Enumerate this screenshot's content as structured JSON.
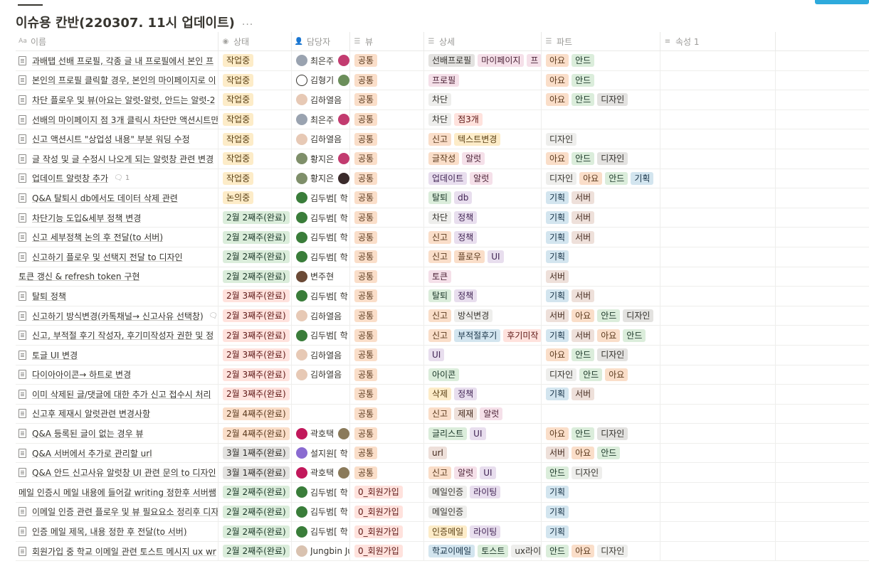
{
  "page": {
    "title": "이슈용 칸반(220307. 11시 업데이트)",
    "more_icon": "..."
  },
  "headers": [
    {
      "label": "이름",
      "icon": "Aa"
    },
    {
      "label": "상태",
      "icon": "status-icon"
    },
    {
      "label": "담당자",
      "icon": "person-icon"
    },
    {
      "label": "뷰",
      "icon": "list-icon"
    },
    {
      "label": "상세",
      "icon": "list-icon"
    },
    {
      "label": "파트",
      "icon": "list-icon"
    },
    {
      "label": "속성 1",
      "icon": "text-icon"
    }
  ],
  "add_column_icon": "+",
  "header_more_icon": "...",
  "colors": {
    "orange": {
      "bg": "#fadec9",
      "fg": "#5b3a1e"
    },
    "yellow": {
      "bg": "#fdecc8",
      "fg": "#5b4116"
    },
    "green": {
      "bg": "#dbeddb",
      "fg": "#1c3829"
    },
    "red": {
      "bg": "#ffe2dd",
      "fg": "#5d1715"
    },
    "pink": {
      "bg": "#f5e0e9",
      "fg": "#4c2337"
    },
    "purple": {
      "bg": "#e8deee",
      "fg": "#412454"
    },
    "blue": {
      "bg": "#d3e5ef",
      "fg": "#183347"
    },
    "gray": {
      "bg": "#e3e2e0",
      "fg": "#32302c"
    },
    "brown": {
      "bg": "#eee0da",
      "fg": "#442a1e"
    },
    "default": {
      "bg": "#eeeeec",
      "fg": "#37352f"
    }
  },
  "rows": [
    {
      "name": "과배탭 선배 프로필, 각종 글 내 프로필에서 본인 프",
      "status": {
        "label": "작업중",
        "color": "yellow"
      },
      "assignee": {
        "name": "최은주",
        "avatar": "#9aa3b0",
        "second": "#c23b6f"
      },
      "view": {
        "label": "공통",
        "color": "orange"
      },
      "detail": [
        {
          "label": "선배프로필",
          "color": "gray"
        },
        {
          "label": "마이페이지",
          "color": "pink"
        },
        {
          "label": "프",
          "color": "pink"
        }
      ],
      "part": [
        {
          "label": "아요",
          "color": "orange"
        },
        {
          "label": "안드",
          "color": "green"
        }
      ]
    },
    {
      "name": "본인의 프로필 클릭할 경우, 본인의 마이페이지로 이",
      "status": {
        "label": "작업중",
        "color": "yellow"
      },
      "assignee": {
        "name": "김형기",
        "avatar": "#ffffff",
        "second": "#6b8e5a",
        "outline": true
      },
      "view": {
        "label": "공통",
        "color": "orange"
      },
      "detail": [
        {
          "label": "프로필",
          "color": "pink"
        }
      ],
      "part": [
        {
          "label": "아요",
          "color": "orange"
        },
        {
          "label": "안드",
          "color": "green"
        }
      ]
    },
    {
      "name": "차단 플로우 및 뷰(아요는 알럿-알럿, 안드는 알럿-2",
      "status": {
        "label": "작업중",
        "color": "yellow"
      },
      "assignee": {
        "name": "김하열음",
        "avatar": "#e7c9b5"
      },
      "view": {
        "label": "공통",
        "color": "orange"
      },
      "detail": [
        {
          "label": "차단",
          "color": "default"
        }
      ],
      "part": [
        {
          "label": "아요",
          "color": "orange"
        },
        {
          "label": "안드",
          "color": "green"
        },
        {
          "label": "디자인",
          "color": "gray"
        }
      ]
    },
    {
      "name": "선배의 마이페이지 점 3개 클릭시 차단만 액션시트만",
      "status": {
        "label": "작업중",
        "color": "yellow"
      },
      "assignee": {
        "name": "최은주",
        "avatar": "#9aa3b0",
        "second": "#c23b6f"
      },
      "view": {
        "label": "공통",
        "color": "orange"
      },
      "detail": [
        {
          "label": "차단",
          "color": "default"
        },
        {
          "label": "점3개",
          "color": "red"
        }
      ],
      "part": []
    },
    {
      "name": "신고 액션시트 \"상업성 내용\" 부분 워딩 수정",
      "status": {
        "label": "작업중",
        "color": "yellow"
      },
      "assignee": {
        "name": "김하열음",
        "avatar": "#e7c9b5"
      },
      "view": {
        "label": "공통",
        "color": "orange"
      },
      "detail": [
        {
          "label": "신고",
          "color": "orange"
        },
        {
          "label": "텍스트변경",
          "color": "yellow"
        }
      ],
      "part": [
        {
          "label": "디자인",
          "color": "default"
        }
      ]
    },
    {
      "name": "글 작성 및 글 수정시 나오게 되는 알럿창 관련 변경",
      "status": {
        "label": "작업중",
        "color": "yellow"
      },
      "assignee": {
        "name": "황지은",
        "avatar": "#7f8f6a",
        "second": "#c23b6f"
      },
      "view": {
        "label": "공통",
        "color": "orange"
      },
      "detail": [
        {
          "label": "글작성",
          "color": "orange"
        },
        {
          "label": "알럿",
          "color": "pink"
        }
      ],
      "part": [
        {
          "label": "아요",
          "color": "orange"
        },
        {
          "label": "안드",
          "color": "green"
        },
        {
          "label": "디자인",
          "color": "gray"
        }
      ]
    },
    {
      "name": "업데이트 알럿창 추가",
      "comment": "1",
      "status": {
        "label": "작업중",
        "color": "yellow"
      },
      "assignee": {
        "name": "황지은",
        "avatar": "#7f8f6a",
        "second": "#3a2a2a"
      },
      "view": {
        "label": "공통",
        "color": "orange"
      },
      "detail": [
        {
          "label": "업데이트",
          "color": "purple"
        },
        {
          "label": "알럿",
          "color": "pink"
        }
      ],
      "part": [
        {
          "label": "디자인",
          "color": "default"
        },
        {
          "label": "아요",
          "color": "orange"
        },
        {
          "label": "안드",
          "color": "green"
        },
        {
          "label": "기획",
          "color": "blue"
        }
      ]
    },
    {
      "name": "Q&A 탈퇴시 db에서도 데이터 삭제 관련",
      "status": {
        "label": "논의중",
        "color": "yellow"
      },
      "assignee": {
        "name": "김두범[ 학",
        "avatar": "#3a7d3a"
      },
      "view": {
        "label": "공통",
        "color": "orange"
      },
      "detail": [
        {
          "label": "탈퇴",
          "color": "green"
        },
        {
          "label": "db",
          "color": "purple"
        }
      ],
      "part": [
        {
          "label": "기획",
          "color": "blue"
        },
        {
          "label": "서버",
          "color": "brown"
        }
      ]
    },
    {
      "name": "차단기능 도입&세부 정책 변경",
      "status": {
        "label": "2월 2째주(완료)",
        "color": "green"
      },
      "assignee": {
        "name": "김두범[ 학",
        "avatar": "#3a7d3a"
      },
      "view": {
        "label": "공통",
        "color": "orange"
      },
      "detail": [
        {
          "label": "차단",
          "color": "default"
        },
        {
          "label": "정책",
          "color": "purple"
        }
      ],
      "part": [
        {
          "label": "기획",
          "color": "blue"
        },
        {
          "label": "서버",
          "color": "brown"
        }
      ]
    },
    {
      "name": "신고 세부정책 논의 후 전달(to 서버)",
      "status": {
        "label": "2월 2째주(완료)",
        "color": "green"
      },
      "assignee": {
        "name": "김두범[ 학",
        "avatar": "#3a7d3a"
      },
      "view": {
        "label": "공통",
        "color": "orange"
      },
      "detail": [
        {
          "label": "신고",
          "color": "orange"
        },
        {
          "label": "정책",
          "color": "purple"
        }
      ],
      "part": [
        {
          "label": "기획",
          "color": "blue"
        },
        {
          "label": "서버",
          "color": "brown"
        }
      ]
    },
    {
      "name": "신고하기 플로우 및 선택지 전달 to 디자인",
      "status": {
        "label": "2월 2째주(완료)",
        "color": "green"
      },
      "assignee": {
        "name": "김두범[ 학",
        "avatar": "#3a7d3a"
      },
      "view": {
        "label": "공통",
        "color": "orange"
      },
      "detail": [
        {
          "label": "신고",
          "color": "orange"
        },
        {
          "label": "플로우",
          "color": "orange"
        },
        {
          "label": "UI",
          "color": "purple"
        }
      ],
      "part": [
        {
          "label": "기획",
          "color": "blue"
        }
      ]
    },
    {
      "name": "토큰 갱신 & refresh token 구현",
      "no_icon": true,
      "status": {
        "label": "2월 2째주(완료)",
        "color": "green"
      },
      "assignee": {
        "name": "변주현",
        "avatar": "#6b4a36"
      },
      "view": {
        "label": "공통",
        "color": "orange"
      },
      "detail": [
        {
          "label": "토큰",
          "color": "pink"
        }
      ],
      "part": [
        {
          "label": "서버",
          "color": "brown"
        }
      ]
    },
    {
      "name": "탈퇴 정책",
      "status": {
        "label": "2월 3째주(완료)",
        "color": "red"
      },
      "assignee": {
        "name": "김두범[ 학",
        "avatar": "#3a7d3a"
      },
      "view": {
        "label": "공통",
        "color": "orange"
      },
      "detail": [
        {
          "label": "탈퇴",
          "color": "green"
        },
        {
          "label": "정책",
          "color": "purple"
        }
      ],
      "part": [
        {
          "label": "기획",
          "color": "blue"
        },
        {
          "label": "서버",
          "color": "brown"
        }
      ]
    },
    {
      "name": "신고하기 방식변경(카톡채널→ 신고사유 선택창)",
      "comment": " ",
      "status": {
        "label": "2월 3째주(완료)",
        "color": "red"
      },
      "assignee": {
        "name": "김하열음",
        "avatar": "#e7c9b5"
      },
      "view": {
        "label": "공통",
        "color": "orange"
      },
      "detail": [
        {
          "label": "신고",
          "color": "orange"
        },
        {
          "label": "방식변경",
          "color": "default"
        }
      ],
      "part": [
        {
          "label": "서버",
          "color": "brown"
        },
        {
          "label": "아요",
          "color": "orange"
        },
        {
          "label": "안드",
          "color": "green"
        },
        {
          "label": "디자인",
          "color": "gray"
        }
      ]
    },
    {
      "name": "신고, 부적절 후기 작성자, 후기미작성자 권한 및 정",
      "status": {
        "label": "2월 3째주(완료)",
        "color": "red"
      },
      "assignee": {
        "name": "김두범[ 학",
        "avatar": "#3a7d3a"
      },
      "view": {
        "label": "공통",
        "color": "orange"
      },
      "detail": [
        {
          "label": "신고",
          "color": "orange"
        },
        {
          "label": "부적절후기",
          "color": "blue"
        },
        {
          "label": "후기미작",
          "color": "red"
        }
      ],
      "part": [
        {
          "label": "기획",
          "color": "blue"
        },
        {
          "label": "서버",
          "color": "brown"
        },
        {
          "label": "아요",
          "color": "orange"
        },
        {
          "label": "안드",
          "color": "green"
        }
      ]
    },
    {
      "name": "토글 UI 변경",
      "status": {
        "label": "2월 3째주(완료)",
        "color": "red"
      },
      "assignee": {
        "name": "김하열음",
        "avatar": "#e7c9b5"
      },
      "view": {
        "label": "공통",
        "color": "orange"
      },
      "detail": [
        {
          "label": "UI",
          "color": "purple"
        }
      ],
      "part": [
        {
          "label": "아요",
          "color": "orange"
        },
        {
          "label": "안드",
          "color": "green"
        },
        {
          "label": "디자인",
          "color": "gray"
        }
      ]
    },
    {
      "name": "다이아아이콘→ 하트로 변경",
      "status": {
        "label": "2월 3째주(완료)",
        "color": "red"
      },
      "assignee": {
        "name": "김하열음",
        "avatar": "#e7c9b5"
      },
      "view": {
        "label": "공통",
        "color": "orange"
      },
      "detail": [
        {
          "label": "아이콘",
          "color": "green"
        }
      ],
      "part": [
        {
          "label": "디자인",
          "color": "default"
        },
        {
          "label": "안드",
          "color": "green"
        },
        {
          "label": "아요",
          "color": "orange"
        }
      ]
    },
    {
      "name": "이미 삭제된 글/댓글에 대한 추가 신고 접수시 처리",
      "status": {
        "label": "2월 3째주(완료)",
        "color": "red"
      },
      "assignee": {
        "name": "",
        "avatar": ""
      },
      "view": {
        "label": "공통",
        "color": "orange"
      },
      "detail": [
        {
          "label": "삭제",
          "color": "yellow"
        },
        {
          "label": "정책",
          "color": "purple"
        }
      ],
      "part": [
        {
          "label": "기획",
          "color": "blue"
        },
        {
          "label": "서버",
          "color": "brown"
        }
      ]
    },
    {
      "name": "신고후 제재시 알럿관련 변경사항",
      "status": {
        "label": "2월 4째주(완료)",
        "color": "orange"
      },
      "assignee": {
        "name": "",
        "avatar": ""
      },
      "view": {
        "label": "공통",
        "color": "orange"
      },
      "detail": [
        {
          "label": "신고",
          "color": "orange"
        },
        {
          "label": "제재",
          "color": "brown"
        },
        {
          "label": "알럿",
          "color": "pink"
        }
      ],
      "part": []
    },
    {
      "name": "Q&A 등록된 글이 없는 경우 뷰",
      "status": {
        "label": "2월 4째주(완료)",
        "color": "orange"
      },
      "assignee": {
        "name": "곽호택",
        "avatar": "#c2185b",
        "second": "#8a7a5a"
      },
      "view": {
        "label": "공통",
        "color": "orange"
      },
      "detail": [
        {
          "label": "글리스트",
          "color": "green"
        },
        {
          "label": "UI",
          "color": "purple"
        }
      ],
      "part": [
        {
          "label": "아요",
          "color": "orange"
        },
        {
          "label": "안드",
          "color": "green"
        },
        {
          "label": "디자인",
          "color": "gray"
        }
      ]
    },
    {
      "name": "Q&A 서버에서 추가로 관리할 url",
      "status": {
        "label": "3월 1째주(완료)",
        "color": "gray"
      },
      "assignee": {
        "name": "설지원[ 학",
        "avatar": "#8a6bd1"
      },
      "view": {
        "label": "공통",
        "color": "orange"
      },
      "detail": [
        {
          "label": "url",
          "color": "brown"
        }
      ],
      "part": [
        {
          "label": "서버",
          "color": "brown"
        },
        {
          "label": "아요",
          "color": "orange"
        },
        {
          "label": "안드",
          "color": "green"
        }
      ]
    },
    {
      "name": "Q&A 안드 신고사유 알럿창 UI 관련 문의 to 디자인",
      "status": {
        "label": "3월 1째주(완료)",
        "color": "gray"
      },
      "assignee": {
        "name": "곽호택",
        "avatar": "#c2185b",
        "second": "#8a7a5a"
      },
      "view": {
        "label": "공통",
        "color": "orange"
      },
      "detail": [
        {
          "label": "신고",
          "color": "orange"
        },
        {
          "label": "알럿",
          "color": "pink"
        },
        {
          "label": "UI",
          "color": "purple"
        }
      ],
      "part": [
        {
          "label": "안드",
          "color": "green"
        },
        {
          "label": "디자인",
          "color": "default"
        }
      ]
    },
    {
      "name": "메일 인증시 메일 내용에 들어갈 writing 정한후 서버쌤",
      "no_icon": true,
      "status": {
        "label": "2월 2째주(완료)",
        "color": "green"
      },
      "assignee": {
        "name": "김두범[ 학",
        "avatar": "#3a7d3a"
      },
      "view": {
        "label": "0_회원가입",
        "color": "red"
      },
      "detail": [
        {
          "label": "메일인증",
          "color": "default"
        },
        {
          "label": "라이팅",
          "color": "purple"
        }
      ],
      "part": [
        {
          "label": "기획",
          "color": "blue"
        }
      ]
    },
    {
      "name": "이메일 인증 관련 플로우 및 뷰 필요요소 정리후 디자",
      "status": {
        "label": "2월 2째주(완료)",
        "color": "green"
      },
      "assignee": {
        "name": "김두범[ 학",
        "avatar": "#3a7d3a"
      },
      "view": {
        "label": "0_회원가입",
        "color": "red"
      },
      "detail": [
        {
          "label": "메일인증",
          "color": "default"
        }
      ],
      "part": [
        {
          "label": "기획",
          "color": "blue"
        }
      ]
    },
    {
      "name": "인증 메일 제목, 내용 정한 후 전달(to 서버)",
      "status": {
        "label": "2월 2째주(완료)",
        "color": "green"
      },
      "assignee": {
        "name": "김두범[ 학",
        "avatar": "#3a7d3a"
      },
      "view": {
        "label": "0_회원가입",
        "color": "red"
      },
      "detail": [
        {
          "label": "인증메일",
          "color": "yellow"
        },
        {
          "label": "라이팅",
          "color": "purple"
        }
      ],
      "part": [
        {
          "label": "기획",
          "color": "blue"
        }
      ]
    },
    {
      "name": "회원가입 중 학교 이메일 관련 토스트 메시지 ux wr",
      "status": {
        "label": "2월 2째주(완료)",
        "color": "green"
      },
      "assignee": {
        "name": "Jungbin Ju",
        "avatar": "#d9c2b0"
      },
      "view": {
        "label": "0_회원가입",
        "color": "red"
      },
      "detail": [
        {
          "label": "학교이메일",
          "color": "blue"
        },
        {
          "label": "토스트",
          "color": "green"
        },
        {
          "label": "ux라이",
          "color": "default"
        }
      ],
      "part": [
        {
          "label": "안드",
          "color": "green"
        },
        {
          "label": "아요",
          "color": "orange"
        },
        {
          "label": "디자인",
          "color": "default"
        }
      ]
    }
  ]
}
